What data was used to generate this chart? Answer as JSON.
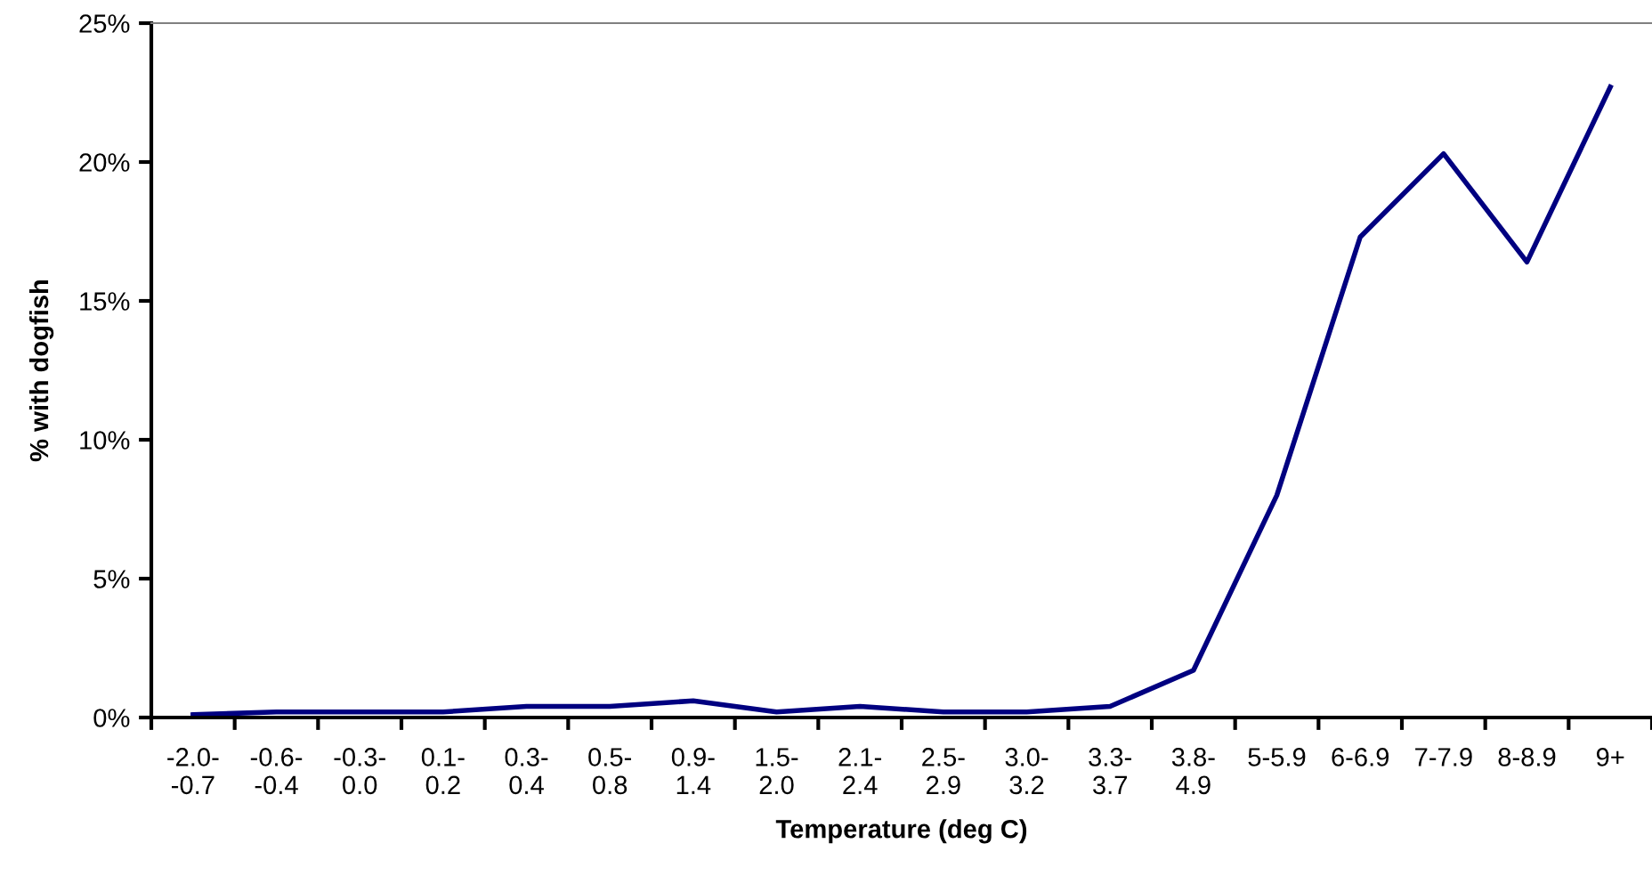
{
  "chart_data": {
    "type": "line",
    "xlabel": "Temperature (deg C)",
    "ylabel": "% with dogfish",
    "categories": [
      "-2.0-\n-0.7",
      "-0.6-\n-0.4",
      "-0.3-\n0.0",
      "0.1-\n0.2",
      "0.3-\n0.4",
      "0.5-\n0.8",
      "0.9-\n1.4",
      "1.5-\n2.0",
      "2.1-\n2.4",
      "2.5-\n2.9",
      "3.0-\n3.2",
      "3.3-\n3.7",
      "3.8-\n4.9",
      "5-5.9",
      "6-6.9",
      "7-7.9",
      "8-8.9",
      "9+"
    ],
    "series": [
      {
        "color": "#000080",
        "values": [
          0.1,
          0.2,
          0.2,
          0.2,
          0.4,
          0.4,
          0.6,
          0.2,
          0.4,
          0.2,
          0.2,
          0.4,
          1.7,
          8.0,
          17.3,
          20.3,
          16.4,
          22.7
        ]
      }
    ],
    "ylim": [
      0,
      25
    ],
    "yticks": [
      {
        "value": 0,
        "label": "0%"
      },
      {
        "value": 5,
        "label": "5%"
      },
      {
        "value": 10,
        "label": "10%"
      },
      {
        "value": 15,
        "label": "15%"
      },
      {
        "value": 20,
        "label": "20%"
      },
      {
        "value": 25,
        "label": "25%"
      }
    ],
    "grid": false,
    "legend": false,
    "marker": "none",
    "line_style": "solid"
  }
}
